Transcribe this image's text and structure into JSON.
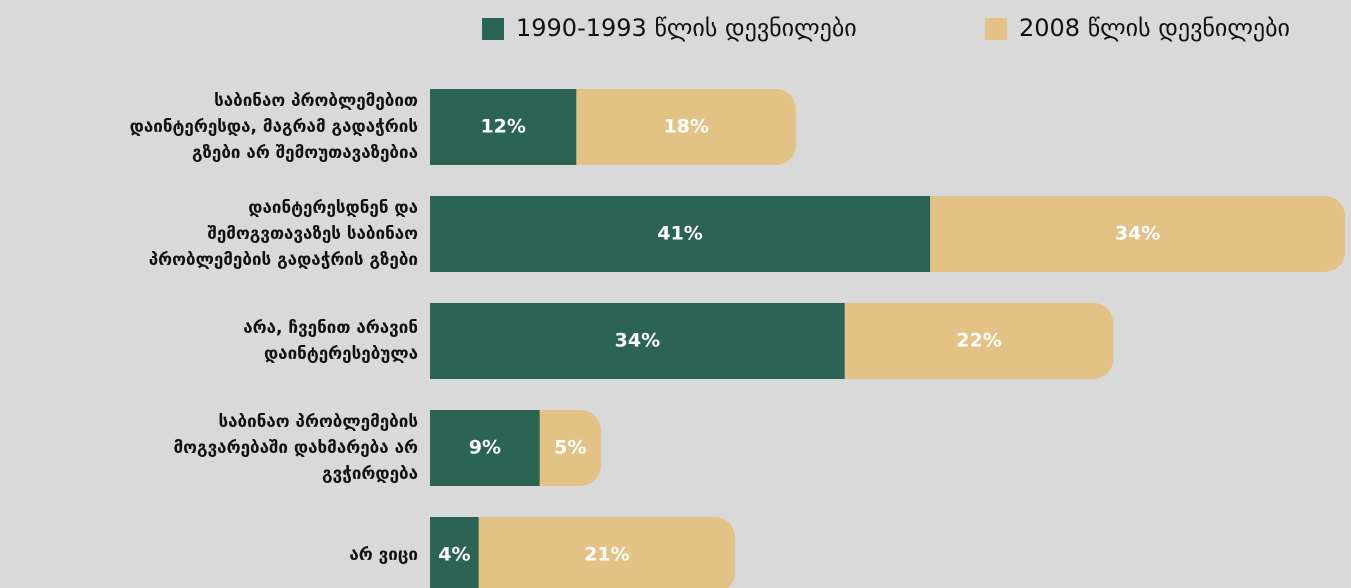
{
  "chart_data": {
    "type": "stacked_barh",
    "categories": [
      "საბინაო პრობლემებით\nდაინტერესდა, მაგრამ გადაჭრის\nგზები არ შემოუთავაზებია",
      "დაინტერესდნენ და\nშემოგვთავაზეს საბინაო\nპრობლემების გადაჭრის გზები",
      "არა, ჩვენით არავინ\nდაინტერესებულა",
      "საბინაო პრობლემების\nმოგვარებაში დახმარება არ\nგვჭირდება",
      "არ ვიცი"
    ],
    "series": [
      {
        "name": "1990-1993 წლის დევნილები",
        "color": "#2b6455",
        "values": [
          12,
          41,
          34,
          9,
          4
        ],
        "value_labels": [
          "12%",
          "41%",
          "34%",
          "9%",
          "4%"
        ]
      },
      {
        "name": "2008 წლის დევნილები",
        "color": "#e2c285",
        "values": [
          18,
          34,
          22,
          5,
          21
        ],
        "value_labels": [
          "18%",
          "34%",
          "22%",
          "5%",
          "21%"
        ]
      }
    ],
    "legend": "top-right"
  }
}
